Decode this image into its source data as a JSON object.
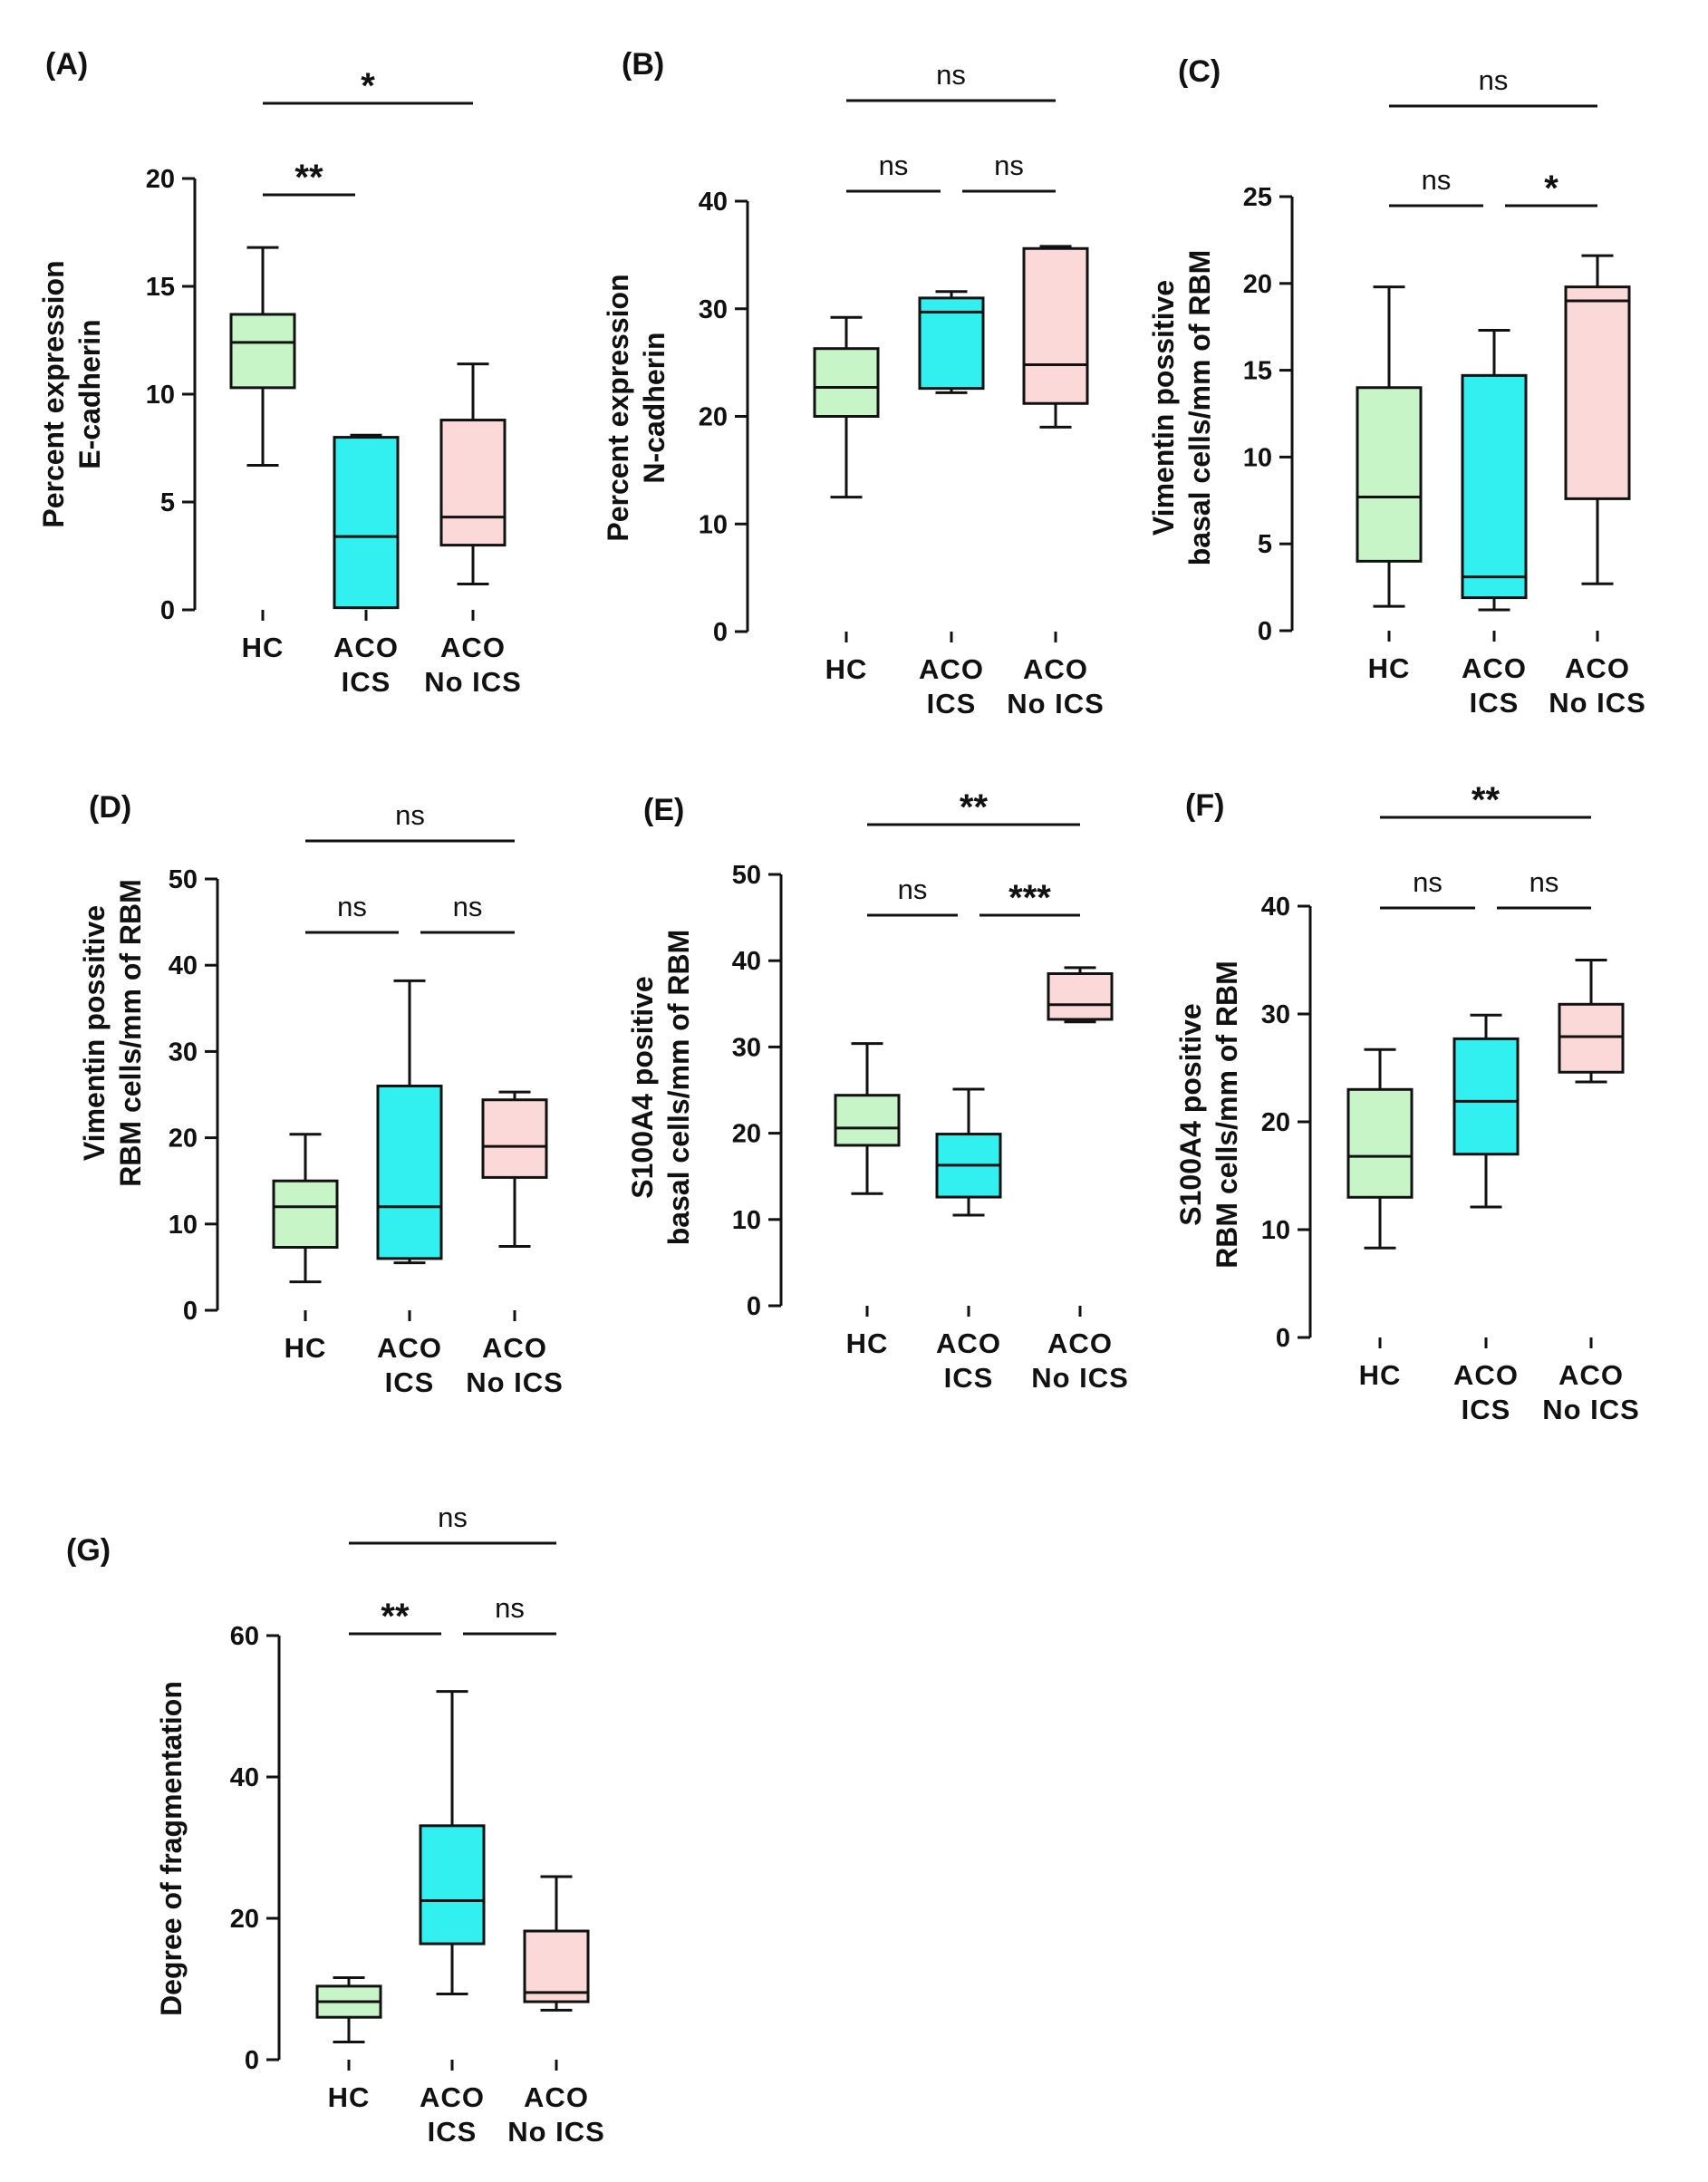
{
  "figure": {
    "colors": {
      "HC": "#c8f5c8",
      "ACO ICS": "#33f0f0",
      "ACO No ICS": "#fcd9d9",
      "stroke": "#111111"
    }
  },
  "chart_data": [
    {
      "type": "box",
      "panel": "(A)",
      "ylabel": [
        "Percent expression",
        "E-cadherin"
      ],
      "ylim": [
        0,
        20
      ],
      "yticks": [
        0,
        5,
        10,
        15,
        20
      ],
      "categories": [
        [
          "HC"
        ],
        [
          "ACO",
          "ICS"
        ],
        [
          "ACO",
          "No ICS"
        ]
      ],
      "series": [
        {
          "name": "HC",
          "min": 6.7,
          "q1": 10.3,
          "median": 12.4,
          "q3": 13.7,
          "max": 16.8
        },
        {
          "name": "ACO ICS",
          "min": 0.1,
          "q1": 0.1,
          "median": 3.4,
          "q3": 8.0,
          "max": 8.1
        },
        {
          "name": "ACO No ICS",
          "min": 1.2,
          "q1": 3.0,
          "median": 4.3,
          "q3": 8.8,
          "max": 11.4
        }
      ],
      "comparisons": [
        {
          "from": 0,
          "to": 1,
          "label": "**",
          "level": 0
        },
        {
          "from": 0,
          "to": 2,
          "label": "*",
          "level": 1
        }
      ]
    },
    {
      "type": "box",
      "panel": "(B)",
      "ylabel": [
        "Percent expression",
        "N-cadherin"
      ],
      "ylim": [
        0,
        40
      ],
      "yticks": [
        0,
        10,
        20,
        30,
        40
      ],
      "categories": [
        [
          "HC"
        ],
        [
          "ACO",
          "ICS"
        ],
        [
          "ACO",
          "No ICS"
        ]
      ],
      "series": [
        {
          "name": "HC",
          "min": 12.5,
          "q1": 20.0,
          "median": 22.7,
          "q3": 26.3,
          "max": 29.2
        },
        {
          "name": "ACO ICS",
          "min": 22.2,
          "q1": 22.6,
          "median": 29.7,
          "q3": 31.0,
          "max": 31.6
        },
        {
          "name": "ACO No ICS",
          "min": 19.0,
          "q1": 21.2,
          "median": 24.8,
          "q3": 35.6,
          "max": 35.8
        }
      ],
      "comparisons": [
        {
          "from": 0,
          "to": 1,
          "label": "ns",
          "level": 0
        },
        {
          "from": 1,
          "to": 2,
          "label": "ns",
          "level": 0
        },
        {
          "from": 0,
          "to": 2,
          "label": "ns",
          "level": 1
        }
      ]
    },
    {
      "type": "box",
      "panel": "(C)",
      "ylabel": [
        "Vimentin possitive",
        "basal cells/mm of RBM"
      ],
      "ylim": [
        0,
        25
      ],
      "yticks": [
        0,
        5,
        10,
        15,
        20,
        25
      ],
      "categories": [
        [
          "HC"
        ],
        [
          "ACO",
          "ICS"
        ],
        [
          "ACO",
          "No ICS"
        ]
      ],
      "series": [
        {
          "name": "HC",
          "min": 1.4,
          "q1": 4.0,
          "median": 7.7,
          "q3": 14.0,
          "max": 19.8
        },
        {
          "name": "ACO ICS",
          "min": 1.2,
          "q1": 1.9,
          "median": 3.1,
          "q3": 14.7,
          "max": 17.3
        },
        {
          "name": "ACO No ICS",
          "min": 2.7,
          "q1": 7.6,
          "median": 19.0,
          "q3": 19.8,
          "max": 21.6
        }
      ],
      "comparisons": [
        {
          "from": 0,
          "to": 1,
          "label": "ns",
          "level": 0
        },
        {
          "from": 1,
          "to": 2,
          "label": "*",
          "level": 0
        },
        {
          "from": 0,
          "to": 2,
          "label": "ns",
          "level": 1
        }
      ]
    },
    {
      "type": "box",
      "panel": "(D)",
      "ylabel": [
        "Vimentin possitive",
        "RBM cells/mm of RBM"
      ],
      "ylim": [
        0,
        50
      ],
      "yticks": [
        0,
        10,
        20,
        30,
        40,
        50
      ],
      "categories": [
        [
          "HC"
        ],
        [
          "ACO",
          "ICS"
        ],
        [
          "ACO",
          "No ICS"
        ]
      ],
      "series": [
        {
          "name": "HC",
          "min": 3.3,
          "q1": 7.3,
          "median": 12.0,
          "q3": 15.0,
          "max": 20.4
        },
        {
          "name": "ACO ICS",
          "min": 5.5,
          "q1": 6.0,
          "median": 12.0,
          "q3": 26.0,
          "max": 38.2
        },
        {
          "name": "ACO No ICS",
          "min": 7.4,
          "q1": 15.4,
          "median": 19.0,
          "q3": 24.4,
          "max": 25.3
        }
      ],
      "comparisons": [
        {
          "from": 0,
          "to": 1,
          "label": "ns",
          "level": 0
        },
        {
          "from": 1,
          "to": 2,
          "label": "ns",
          "level": 0
        },
        {
          "from": 0,
          "to": 2,
          "label": "ns",
          "level": 1
        }
      ]
    },
    {
      "type": "box",
      "panel": "(E)",
      "ylabel": [
        "S100A4 positive",
        "basal cells/mm of RBM"
      ],
      "ylim": [
        0,
        50
      ],
      "yticks": [
        0,
        10,
        20,
        30,
        40,
        50
      ],
      "categories": [
        [
          "HC"
        ],
        [
          "ACO",
          "ICS"
        ],
        [
          "ACO",
          "No ICS"
        ]
      ],
      "series": [
        {
          "name": "HC",
          "min": 13.0,
          "q1": 18.6,
          "median": 20.6,
          "q3": 24.4,
          "max": 30.4
        },
        {
          "name": "ACO ICS",
          "min": 10.5,
          "q1": 12.6,
          "median": 16.3,
          "q3": 19.9,
          "max": 25.1
        },
        {
          "name": "ACO No ICS",
          "min": 32.9,
          "q1": 33.2,
          "median": 34.9,
          "q3": 38.5,
          "max": 39.2
        }
      ],
      "comparisons": [
        {
          "from": 0,
          "to": 1,
          "label": "ns",
          "level": 0
        },
        {
          "from": 1,
          "to": 2,
          "label": "***",
          "level": 0
        },
        {
          "from": 0,
          "to": 2,
          "label": "**",
          "level": 1
        }
      ]
    },
    {
      "type": "box",
      "panel": "(F)",
      "ylabel": [
        "S100A4 positive",
        "RBM cells/mm of RBM"
      ],
      "ylim": [
        0,
        40
      ],
      "yticks": [
        0,
        10,
        20,
        30,
        40
      ],
      "categories": [
        [
          "HC"
        ],
        [
          "ACO",
          "ICS"
        ],
        [
          "ACO",
          "No ICS"
        ]
      ],
      "series": [
        {
          "name": "HC",
          "min": 8.3,
          "q1": 13.0,
          "median": 16.8,
          "q3": 23.0,
          "max": 26.7
        },
        {
          "name": "ACO ICS",
          "min": 12.1,
          "q1": 17.0,
          "median": 21.9,
          "q3": 27.7,
          "max": 29.9
        },
        {
          "name": "ACO No ICS",
          "min": 23.7,
          "q1": 24.6,
          "median": 27.9,
          "q3": 30.9,
          "max": 35.0
        }
      ],
      "comparisons": [
        {
          "from": 0,
          "to": 1,
          "label": "ns",
          "level": 0
        },
        {
          "from": 1,
          "to": 2,
          "label": "ns",
          "level": 0
        },
        {
          "from": 0,
          "to": 2,
          "label": "**",
          "level": 1
        }
      ]
    },
    {
      "type": "box",
      "panel": "(G)",
      "ylabel": [
        "Degree of fragmentation"
      ],
      "ylim": [
        0,
        60
      ],
      "yticks": [
        0,
        20,
        40,
        60
      ],
      "categories": [
        [
          "HC"
        ],
        [
          "ACO",
          "ICS"
        ],
        [
          "ACO",
          "No ICS"
        ]
      ],
      "series": [
        {
          "name": "HC",
          "min": 2.5,
          "q1": 6.0,
          "median": 8.2,
          "q3": 10.4,
          "max": 11.6
        },
        {
          "name": "ACO ICS",
          "min": 9.3,
          "q1": 16.4,
          "median": 22.5,
          "q3": 33.1,
          "max": 52.1
        },
        {
          "name": "ACO No ICS",
          "min": 7.0,
          "q1": 8.2,
          "median": 9.5,
          "q3": 18.2,
          "max": 25.9
        }
      ],
      "comparisons": [
        {
          "from": 0,
          "to": 1,
          "label": "**",
          "level": 0
        },
        {
          "from": 1,
          "to": 2,
          "label": "ns",
          "level": 0
        },
        {
          "from": 0,
          "to": 2,
          "label": "ns",
          "level": 1
        }
      ]
    }
  ]
}
